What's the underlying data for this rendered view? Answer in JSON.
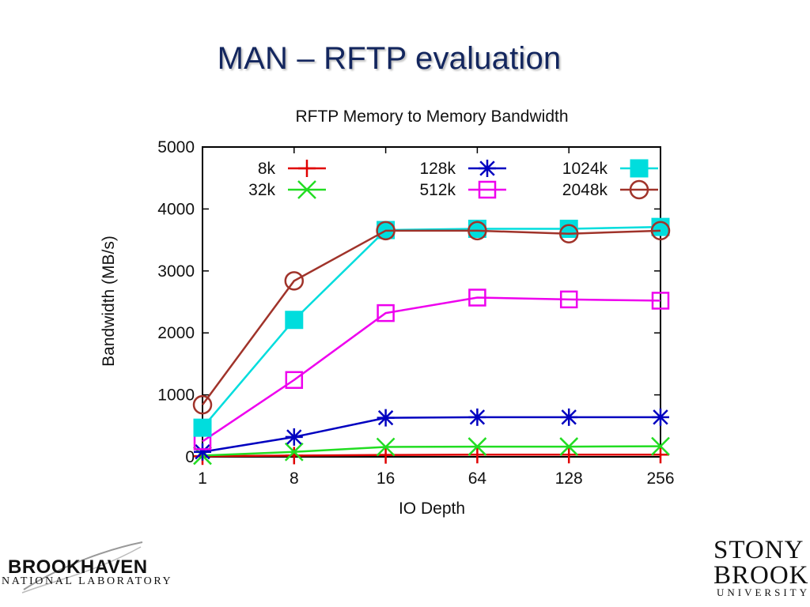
{
  "slide": {
    "title": "MAN – RFTP evaluation"
  },
  "chart_data": {
    "type": "line",
    "title": "RFTP Memory to Memory Bandwidth",
    "xlabel": "IO Depth",
    "ylabel": "Bandwidth (MB/s)",
    "categories": [
      "1",
      "8",
      "16",
      "64",
      "128",
      "256"
    ],
    "yticks": [
      "0",
      "1000",
      "2000",
      "3000",
      "4000",
      "5000"
    ],
    "ylim": [
      0,
      5000
    ],
    "grid": false,
    "legend_position": "top",
    "series": [
      {
        "name": "8k",
        "color": "#e00000",
        "marker": "plus",
        "values": [
          10,
          20,
          30,
          35,
          35,
          35
        ]
      },
      {
        "name": "32k",
        "color": "#22dd22",
        "marker": "x",
        "values": [
          20,
          80,
          160,
          165,
          165,
          170
        ]
      },
      {
        "name": "128k",
        "color": "#0000c0",
        "marker": "star",
        "values": [
          80,
          320,
          630,
          640,
          640,
          640
        ]
      },
      {
        "name": "512k",
        "color": "#ee00ee",
        "marker": "square",
        "values": [
          250,
          1240,
          2320,
          2570,
          2540,
          2520
        ]
      },
      {
        "name": "1024k",
        "color": "#00dddd",
        "marker": "filled-square",
        "values": [
          470,
          2210,
          3660,
          3680,
          3680,
          3710
        ]
      },
      {
        "name": "2048k",
        "color": "#a0332a",
        "marker": "circle",
        "values": [
          840,
          2840,
          3650,
          3650,
          3600,
          3650
        ]
      }
    ]
  },
  "logos": {
    "brookhaven": {
      "name": "BROOKHAVEN",
      "sub": "NATIONAL LABORATORY"
    },
    "stony_brook": {
      "line1": "STONY",
      "line2": "BROOK",
      "sub": "UNIVERSITY"
    }
  }
}
